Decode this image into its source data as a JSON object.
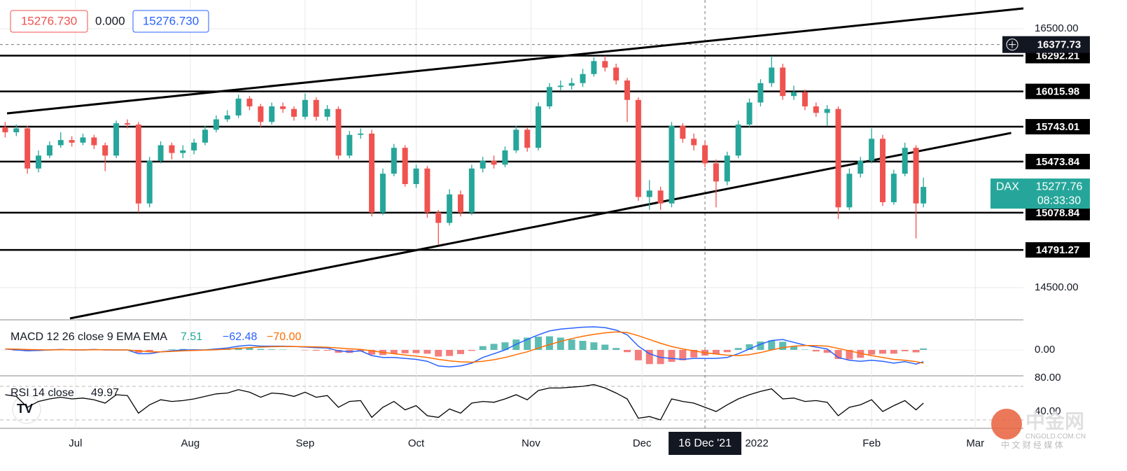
{
  "chart_data": {
    "type": "candlestick",
    "x": [
      -19,
      -16,
      -13,
      -10,
      -7,
      -4,
      -1,
      2,
      5,
      8,
      11,
      14,
      17,
      20,
      23,
      26,
      29,
      32,
      35,
      38,
      41,
      44,
      47,
      50,
      53,
      56,
      59,
      62,
      65,
      68,
      71,
      74,
      77,
      80,
      83,
      86,
      89,
      92,
      95,
      98,
      101,
      104,
      107,
      110,
      113,
      116,
      119,
      122,
      125,
      128,
      131,
      134,
      137,
      140,
      143,
      146,
      149,
      152,
      155,
      158,
      161,
      164,
      167,
      170,
      173,
      176,
      179,
      182,
      185,
      188,
      191,
      194,
      197,
      200,
      203,
      206,
      209,
      212,
      215,
      218,
      221,
      224,
      227,
      229
    ],
    "open": [
      15740,
      15700,
      15730,
      15420,
      15520,
      15600,
      15640,
      15620,
      15660,
      15600,
      15520,
      15770,
      15760,
      15150,
      15480,
      15600,
      15540,
      15560,
      15620,
      15720,
      15800,
      15830,
      15960,
      15900,
      15780,
      15900,
      15880,
      15820,
      15950,
      15820,
      15880,
      15520,
      15680,
      15690,
      15080,
      15380,
      15580,
      15300,
      15420,
      15080,
      15000,
      15220,
      15080,
      15420,
      15480,
      15450,
      15560,
      15720,
      15580,
      15900,
      16050,
      16060,
      16080,
      16150,
      16250,
      16200,
      16100,
      15950,
      15200,
      15250,
      15150,
      15750,
      15650,
      15600,
      15460,
      15320,
      15520,
      15760,
      15930,
      16080,
      16200,
      15980,
      16010,
      15900,
      15850,
      15880,
      15120,
      15380,
      15480,
      15650,
      15160,
      15380,
      15580,
      15150
    ],
    "high": [
      15780,
      15760,
      15750,
      15560,
      15630,
      15700,
      15670,
      15690,
      15680,
      15620,
      15790,
      15800,
      15780,
      15510,
      15630,
      15620,
      15600,
      15650,
      15750,
      15830,
      15870,
      15990,
      15980,
      15920,
      15930,
      15930,
      15900,
      16000,
      15970,
      15910,
      15900,
      15710,
      15730,
      15720,
      15420,
      15610,
      15600,
      15450,
      15440,
      15100,
      15260,
      15250,
      15450,
      15510,
      15520,
      15590,
      15750,
      15740,
      15930,
      16080,
      16100,
      16120,
      16190,
      16280,
      16290,
      16230,
      16120,
      15970,
      15330,
      15280,
      15780,
      15770,
      15690,
      15630,
      15490,
      15550,
      15790,
      15960,
      16110,
      16290,
      16230,
      16060,
      16030,
      15930,
      15910,
      15900,
      15420,
      15510,
      15730,
      15680,
      15410,
      15620,
      15600,
      15350
    ],
    "low": [
      15660,
      15670,
      15380,
      15390,
      15500,
      15580,
      15590,
      15600,
      15570,
      15400,
      15500,
      15730,
      15080,
      15120,
      15460,
      15490,
      15500,
      15530,
      15600,
      15700,
      15780,
      15810,
      15870,
      15740,
      15760,
      15850,
      15790,
      15800,
      15790,
      15790,
      15490,
      15500,
      15650,
      15050,
      15060,
      15360,
      15280,
      15270,
      15040,
      14830,
      14980,
      15050,
      15060,
      15390,
      15420,
      15430,
      15540,
      15550,
      15560,
      15880,
      16020,
      16030,
      16050,
      16130,
      16170,
      16070,
      15780,
      15170,
      15100,
      15100,
      15120,
      15620,
      15560,
      15430,
      15120,
      15290,
      15500,
      15740,
      15900,
      16050,
      15950,
      15950,
      15870,
      15820,
      15750,
      15030,
      15100,
      15350,
      15460,
      15130,
      15140,
      15360,
      14880,
      15120
    ],
    "close": [
      15700,
      15730,
      15420,
      15520,
      15600,
      15640,
      15620,
      15660,
      15600,
      15520,
      15770,
      15760,
      15150,
      15480,
      15600,
      15540,
      15560,
      15620,
      15720,
      15800,
      15830,
      15960,
      15900,
      15780,
      15900,
      15880,
      15820,
      15950,
      15820,
      15880,
      15520,
      15680,
      15690,
      15080,
      15380,
      15580,
      15300,
      15420,
      15080,
      15000,
      15220,
      15080,
      15420,
      15480,
      15450,
      15560,
      15720,
      15580,
      15900,
      16050,
      16060,
      16080,
      16150,
      16250,
      16200,
      16100,
      15950,
      15200,
      15250,
      15150,
      15750,
      15650,
      15600,
      15460,
      15320,
      15520,
      15760,
      15930,
      16080,
      16200,
      15980,
      16010,
      15900,
      15850,
      15880,
      15120,
      15380,
      15480,
      15650,
      15160,
      15380,
      15580,
      15150,
      15277.76
    ],
    "up_color": "#26a69a",
    "down_color": "#ef5350",
    "xlim": [
      -20.4,
      256
    ],
    "xticks": [
      {
        "value": 0,
        "label": "Jul"
      },
      {
        "value": 31,
        "label": "Aug"
      },
      {
        "value": 62,
        "label": "Sep"
      },
      {
        "value": 92,
        "label": "Oct"
      },
      {
        "value": 123,
        "label": "Nov"
      },
      {
        "value": 153,
        "label": "Dec"
      },
      {
        "value": 184,
        "label": "2022"
      },
      {
        "value": 215,
        "label": "Feb"
      },
      {
        "value": 243,
        "label": "Mar"
      }
    ],
    "ylim": [
      14251,
      16722
    ],
    "yticks": [
      {
        "value": 16500,
        "label": "16500.00"
      },
      {
        "value": 14500,
        "label": "14500.00"
      }
    ],
    "levels": [
      16292.21,
      16015.98,
      15743.01,
      15473.84,
      15078.84,
      14791.27
    ],
    "trendlines": [
      {
        "x": [
          -18.5,
          256
        ],
        "y": [
          15846,
          16657
        ]
      },
      {
        "x": [
          -1.5,
          252.7
        ],
        "y": [
          14262,
          15695
        ]
      }
    ],
    "crosshair": {
      "x": 170,
      "date": "16 Dec '21",
      "price": 16377.73
    },
    "last": {
      "symbol": "DAX",
      "price": 15277.76,
      "countdown": "08:33:30"
    },
    "badges": [
      {
        "value": 15276.73,
        "label": "15276.730"
      },
      {
        "value": 0,
        "label": "0.000"
      },
      {
        "value": 15276.73,
        "label": "15276.730"
      }
    ],
    "macd": {
      "name": "MACD 12 26 close 9 EMA EMA",
      "macd_color": "#2962ff",
      "signal_color": "#ff6d00",
      "ylim": [
        -137,
        159
      ],
      "yticks": [
        {
          "value": 0,
          "label": "0.00"
        }
      ],
      "macd": [
        5,
        0,
        -5,
        -3,
        0,
        2,
        0,
        0,
        2,
        0,
        0,
        0,
        -20,
        -20,
        -10,
        -5,
        0,
        0,
        0,
        5,
        10,
        20,
        25,
        20,
        20,
        20,
        18,
        15,
        12,
        10,
        -5,
        -10,
        -5,
        -30,
        -40,
        -40,
        -45,
        -50,
        -60,
        -85,
        -90,
        -85,
        -70,
        -40,
        -20,
        0,
        30,
        55,
        80,
        100,
        110,
        115,
        120,
        122,
        118,
        105,
        80,
        20,
        -20,
        -40,
        -45,
        -50,
        -45,
        -45,
        -45,
        -40,
        -20,
        5,
        30,
        50,
        55,
        40,
        25,
        15,
        5,
        -40,
        -55,
        -60,
        -55,
        -60,
        -70,
        -62,
        -75,
        -62.48
      ],
      "signal": [
        5,
        4,
        2,
        1,
        0,
        1,
        1,
        0,
        1,
        1,
        0,
        0,
        -5,
        -10,
        -10,
        -8,
        -5,
        -3,
        -1,
        1,
        4,
        8,
        12,
        15,
        17,
        18,
        18,
        17,
        16,
        14,
        10,
        6,
        3,
        -5,
        -13,
        -20,
        -27,
        -33,
        -40,
        -50,
        -58,
        -63,
        -65,
        -60,
        -52,
        -40,
        -25,
        -10,
        10,
        28,
        45,
        60,
        72,
        82,
        90,
        95,
        92,
        75,
        55,
        35,
        18,
        5,
        -5,
        -15,
        -22,
        -28,
        -30,
        -25,
        -14,
        0,
        12,
        20,
        23,
        23,
        20,
        8,
        -5,
        -18,
        -30,
        -40,
        -50,
        -55,
        -62,
        -70
      ],
      "histogram": [
        0,
        -4,
        -7,
        -4,
        0,
        1,
        -1,
        0,
        1,
        -1,
        0,
        0,
        -15,
        -10,
        0,
        3,
        5,
        3,
        1,
        4,
        6,
        12,
        13,
        5,
        3,
        2,
        0,
        -2,
        -4,
        -4,
        -15,
        -16,
        -8,
        -25,
        -27,
        -20,
        -18,
        -17,
        -20,
        -35,
        -32,
        -22,
        -5,
        20,
        32,
        40,
        55,
        65,
        70,
        72,
        65,
        55,
        48,
        40,
        28,
        10,
        -12,
        -55,
        -75,
        -75,
        -63,
        -55,
        -40,
        -30,
        -23,
        -12,
        10,
        30,
        44,
        50,
        43,
        20,
        2,
        -8,
        -15,
        -48,
        -50,
        -42,
        -25,
        -20,
        -20,
        -7,
        -13,
        7.51
      ],
      "legend_values": [
        {
          "value": -62.48,
          "label": "−62.48"
        },
        {
          "value": -70,
          "label": "−70.00"
        }
      ]
    },
    "rsi": {
      "name": "RSI 14 close",
      "color": "#000000",
      "ylim": [
        20,
        82.5
      ],
      "yticks": [
        {
          "value": 80,
          "label": "80.00"
        },
        {
          "value": 40,
          "label": "40.00"
        }
      ],
      "bands": [
        30,
        70
      ],
      "values": [
        60,
        58,
        45,
        52,
        55,
        57,
        55,
        56,
        54,
        50,
        60,
        59,
        38,
        48,
        54,
        52,
        53,
        55,
        58,
        61,
        62,
        66,
        63,
        57,
        62,
        61,
        58,
        63,
        57,
        59,
        45,
        52,
        53,
        33,
        45,
        52,
        42,
        47,
        35,
        33,
        43,
        38,
        50,
        52,
        51,
        55,
        60,
        54,
        65,
        68,
        68,
        69,
        70,
        72,
        68,
        62,
        55,
        32,
        34,
        30,
        55,
        52,
        50,
        45,
        40,
        48,
        55,
        60,
        64,
        67,
        55,
        56,
        52,
        53,
        51,
        35,
        45,
        48,
        54,
        40,
        47,
        53,
        42,
        49.97
      ]
    },
    "watermark": {
      "brand": "中金网",
      "site": "CNGOLD.COM.CN",
      "tagline": "中 文 财 经 媒 体"
    }
  }
}
